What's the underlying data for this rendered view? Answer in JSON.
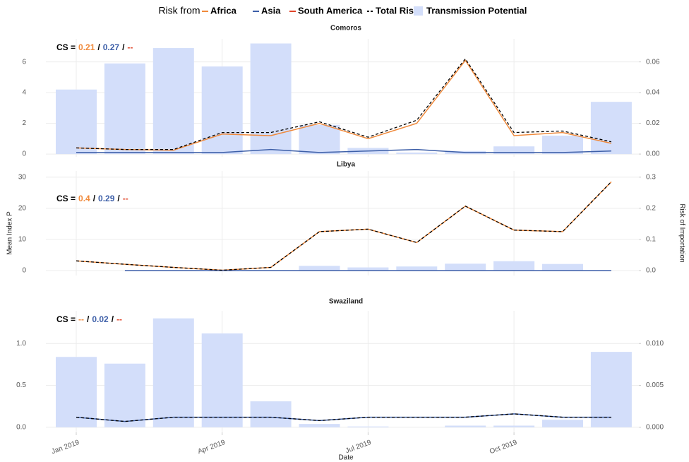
{
  "chart_data": {
    "type": "bar-line",
    "legend": {
      "title": "Risk from",
      "series": [
        {
          "name": "Africa",
          "color": "#f08a3c",
          "kind": "line"
        },
        {
          "name": "Asia",
          "color": "#3d5fa8",
          "kind": "line"
        },
        {
          "name": "South America",
          "color": "#e0452a",
          "kind": "line"
        },
        {
          "name": "Total Risk",
          "color": "#000000",
          "kind": "dashed"
        }
      ],
      "bars": {
        "name": "Transmission Potential",
        "color": "#d3defa"
      }
    },
    "x_label": "Date",
    "y_label": "Mean Index P",
    "y2_label": "Risk of Importation",
    "x": [
      "2019-01",
      "2019-02",
      "2019-03",
      "2019-04",
      "2019-05",
      "2019-06",
      "2019-07",
      "2019-08",
      "2019-09",
      "2019-10",
      "2019-11",
      "2019-12"
    ],
    "xticks": [
      {
        "value": "2019-01",
        "label": "Jan 2019"
      },
      {
        "value": "2019-04",
        "label": "Apr 2019"
      },
      {
        "value": "2019-07",
        "label": "Jul 2019"
      },
      {
        "value": "2019-10",
        "label": "Oct 2019"
      }
    ],
    "grid": true,
    "panels": [
      {
        "title": "Comoros",
        "cs_label": "CS =",
        "cs_separator": "/",
        "cs_values": [
          0.21,
          0.27,
          "--"
        ],
        "ylim": [
          -0.18,
          7.5
        ],
        "yticks": [
          0,
          2,
          4,
          6
        ],
        "y2lim": [
          -0.0018,
          0.075
        ],
        "y2ticks": [
          {
            "value": 0,
            "label": "0.00"
          },
          0.02,
          0.04,
          0.06
        ],
        "bars": [
          4.2,
          5.9,
          6.9,
          5.7,
          7.2,
          1.9,
          0.4,
          0.1,
          0.2,
          0.5,
          1.2,
          3.4
        ],
        "lines": [
          [
            0.004,
            0.003,
            0.0025,
            0.013,
            0.012,
            0.02,
            0.01,
            0.02,
            0.061,
            0.012,
            0.014,
            0.007
          ],
          [
            0.001,
            0.001,
            0.001,
            0.001,
            0.003,
            0.001,
            0.002,
            0.003,
            0.001,
            0.001,
            0.001,
            0.002
          ],
          [
            null,
            null,
            null,
            null,
            null,
            null,
            null,
            null,
            null,
            null,
            null,
            null
          ],
          [
            0.004,
            0.003,
            0.003,
            0.014,
            0.014,
            0.021,
            0.011,
            0.022,
            0.062,
            0.014,
            0.015,
            0.008
          ]
        ]
      },
      {
        "title": "Libya",
        "cs_label": "CS =",
        "cs_separator": "/",
        "cs_values": [
          0.4,
          0.29,
          "--"
        ],
        "ylim": [
          -1.6,
          32
        ],
        "yticks": [
          0,
          10,
          20,
          30
        ],
        "y2lim": [
          -0.016,
          0.32
        ],
        "y2ticks": [
          {
            "value": 0,
            "label": "0.0"
          },
          0.1,
          0.2,
          0.3
        ],
        "bars": [
          0,
          0,
          0,
          0,
          0,
          1.5,
          1.0,
          1.3,
          2.2,
          3.0,
          2.1,
          0
        ],
        "lines": [
          [
            0.031,
            0.02,
            0.01,
            0.001,
            0.01,
            0.125,
            0.133,
            0.09,
            0.207,
            0.13,
            0.125,
            0.285
          ],
          [
            null,
            0,
            0,
            0,
            0,
            0,
            0,
            0,
            0,
            0,
            0,
            0
          ],
          [
            null,
            null,
            null,
            null,
            null,
            null,
            null,
            null,
            null,
            null,
            null,
            null
          ],
          [
            0.031,
            0.02,
            0.01,
            0.001,
            0.01,
            0.125,
            0.133,
            0.09,
            0.207,
            0.13,
            0.125,
            0.285
          ]
        ]
      },
      {
        "title": "Swaziland",
        "cs_label": "CS =",
        "cs_separator": "/",
        "cs_values": [
          "--",
          0.02,
          "--"
        ],
        "ylim": [
          -0.06,
          1.39
        ],
        "yticks": [
          {
            "value": 0,
            "label": "0.0"
          },
          0.5,
          {
            "value": 1,
            "label": "1.0"
          }
        ],
        "y2lim": [
          -0.0006,
          0.0139
        ],
        "y2ticks": [
          {
            "value": 0,
            "label": "0.000"
          },
          0.005,
          {
            "value": 0.01,
            "label": "0.010"
          }
        ],
        "bars": [
          0.84,
          0.76,
          1.3,
          1.12,
          0.31,
          0.04,
          0.01,
          0,
          0.02,
          0.02,
          0.09,
          0.9
        ],
        "lines": [
          [
            null,
            null,
            null,
            null,
            null,
            null,
            null,
            null,
            null,
            null,
            null,
            null
          ],
          [
            0.0012,
            0.0007,
            0.0012,
            0.0012,
            0.0012,
            0.0008,
            0.0012,
            0.0012,
            0.0012,
            0.0016,
            0.0012,
            0.0012
          ],
          [
            null,
            null,
            null,
            null,
            null,
            null,
            null,
            null,
            null,
            null,
            null,
            null
          ],
          [
            0.0012,
            0.0007,
            0.0012,
            0.0012,
            0.0012,
            0.0008,
            0.0012,
            0.0012,
            0.0012,
            0.0016,
            0.0012,
            0.0012
          ]
        ]
      }
    ]
  }
}
